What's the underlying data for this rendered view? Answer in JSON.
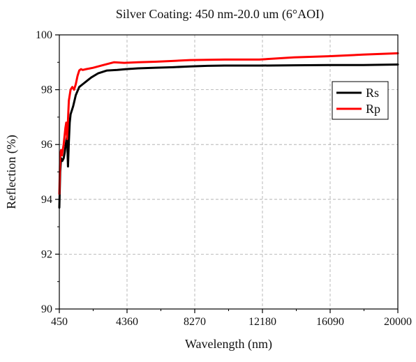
{
  "chart_data": {
    "type": "line",
    "title": "Silver Coating: 450 nm-20.0 um (6°AOI)",
    "xlabel": "Wavelength (nm)",
    "ylabel": "Reflection (%)",
    "xlim": [
      450,
      20000
    ],
    "ylim": [
      90,
      100
    ],
    "xticks": [
      450,
      4360,
      8270,
      12180,
      16090,
      20000
    ],
    "xtick_labels": [
      "450",
      "4360",
      "8270",
      "12180",
      "16090",
      "20000"
    ],
    "yticks": [
      90,
      92,
      94,
      96,
      98,
      100
    ],
    "ytick_labels": [
      "90",
      "92",
      "94",
      "96",
      "98",
      "100"
    ],
    "grid": true,
    "legend_position": "top-right",
    "series": [
      {
        "name": "Rs",
        "color": "#000000",
        "x": [
          450,
          500,
          550,
          620,
          700,
          760,
          820,
          900,
          950,
          1000,
          1050,
          1100,
          1250,
          1400,
          1600,
          1800,
          2000,
          2300,
          2700,
          3200,
          3800,
          4300,
          5000,
          6000,
          7000,
          8000,
          9000,
          10000,
          12000,
          14000,
          16000,
          18000,
          20000
        ],
        "values": [
          93.7,
          95.0,
          95.5,
          95.4,
          95.5,
          95.7,
          96.0,
          96.3,
          95.2,
          96.1,
          96.8,
          97.1,
          97.4,
          97.8,
          98.1,
          98.2,
          98.3,
          98.45,
          98.6,
          98.7,
          98.72,
          98.75,
          98.78,
          98.8,
          98.82,
          98.85,
          98.87,
          98.88,
          98.88,
          98.89,
          98.9,
          98.9,
          98.92
        ]
      },
      {
        "name": "Rp",
        "color": "#ff0000",
        "x": [
          450,
          500,
          550,
          600,
          650,
          700,
          750,
          800,
          850,
          900,
          950,
          1000,
          1100,
          1200,
          1300,
          1400,
          1500,
          1600,
          1700,
          1800,
          2000,
          2400,
          3000,
          3600,
          4200,
          5000,
          6000,
          7000,
          8000,
          10000,
          12000,
          14000,
          16000,
          18000,
          20000
        ],
        "values": [
          94.2,
          95.6,
          95.8,
          95.6,
          95.8,
          96.0,
          96.3,
          96.6,
          96.8,
          96.2,
          96.9,
          97.6,
          98.0,
          98.1,
          98.0,
          98.2,
          98.5,
          98.7,
          98.75,
          98.72,
          98.75,
          98.8,
          98.9,
          99.0,
          98.98,
          99.0,
          99.02,
          99.05,
          99.08,
          99.1,
          99.1,
          99.18,
          99.22,
          99.28,
          99.33
        ]
      }
    ]
  }
}
